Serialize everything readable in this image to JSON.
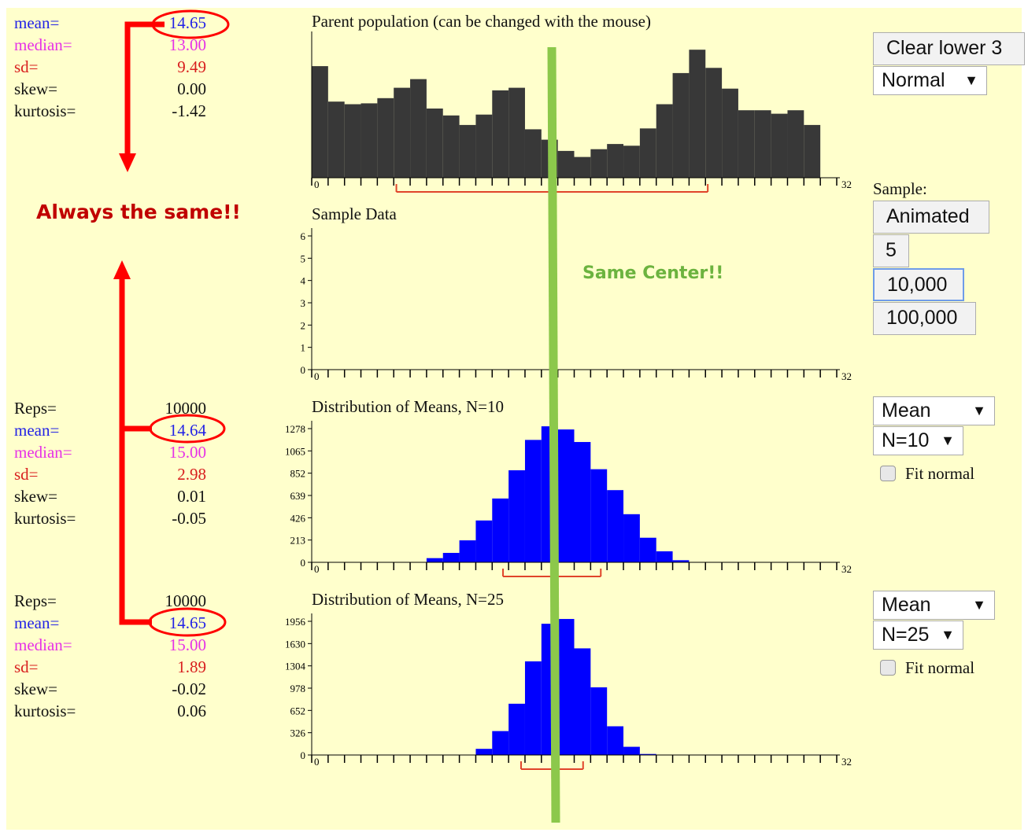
{
  "parent_stats": {
    "mean": {
      "label": "mean=",
      "value": "14.65"
    },
    "median": {
      "label": "median=",
      "value": "13.00"
    },
    "sd": {
      "label": "sd=",
      "value": "9.49"
    },
    "skew": {
      "label": "skew=",
      "value": "0.00"
    },
    "kurtosis": {
      "label": "kurtosis=",
      "value": "-1.42"
    }
  },
  "means10_stats": {
    "reps": {
      "label": "Reps=",
      "value": "10000"
    },
    "mean": {
      "label": "mean=",
      "value": "14.64"
    },
    "median": {
      "label": "median=",
      "value": "15.00"
    },
    "sd": {
      "label": "sd=",
      "value": "2.98"
    },
    "skew": {
      "label": "skew=",
      "value": "0.01"
    },
    "kurtosis": {
      "label": "kurtosis=",
      "value": "-0.05"
    }
  },
  "means25_stats": {
    "reps": {
      "label": "Reps=",
      "value": "10000"
    },
    "mean": {
      "label": "mean=",
      "value": "14.65"
    },
    "median": {
      "label": "median=",
      "value": "15.00"
    },
    "sd": {
      "label": "sd=",
      "value": "1.89"
    },
    "skew": {
      "label": "skew=",
      "value": "-0.02"
    },
    "kurtosis": {
      "label": "kurtosis=",
      "value": "0.06"
    }
  },
  "titles": {
    "parent": "Parent population (can be changed with the mouse)",
    "sample": "Sample Data",
    "means10": "Distribution of Means, N=10",
    "means25": "Distribution of Means, N=25"
  },
  "annotations": {
    "always_same": "Always the same!!",
    "same_center": "Same Center!!"
  },
  "controls": {
    "clear_label": "Clear lower 3",
    "dist_select": "Normal",
    "sample_label": "Sample:",
    "animated_label": "Animated",
    "five_label": "5",
    "tenk_label": "10,000",
    "hundredk_label": "100,000",
    "stat1_select": "Mean",
    "n1_select": "N=10",
    "fit1_label": "Fit normal",
    "stat2_select": "Mean",
    "n2_select": "N=25",
    "fit2_label": "Fit normal",
    "select_arrow": "▼"
  },
  "chart_data": [
    {
      "type": "bar",
      "title": "Parent population (can be changed with the mouse)",
      "x_range": [
        0,
        32
      ],
      "tick_labels": [
        "0",
        "32"
      ],
      "values": [
        129,
        88,
        85,
        86,
        92,
        104,
        114,
        80,
        72,
        61,
        73,
        101,
        104,
        56,
        44,
        31,
        24,
        33,
        39,
        37,
        57,
        85,
        121,
        148,
        127,
        103,
        78,
        78,
        74,
        78,
        61
      ],
      "mean": 14.65,
      "sd": 9.49,
      "colors": {
        "bars": "#383838",
        "sd_bracket": "#e0442a",
        "mean_tick": "#e632e6"
      }
    },
    {
      "type": "bar",
      "title": "Sample Data",
      "x_range": [
        0,
        32
      ],
      "tick_labels": [
        "0",
        "32"
      ],
      "y_ticks": [
        0,
        1,
        2,
        3,
        4,
        5,
        6
      ],
      "values": []
    },
    {
      "type": "bar",
      "title": "Distribution of Means, N=10",
      "x_range": [
        0,
        32
      ],
      "tick_labels": [
        "0",
        "32"
      ],
      "y_ticks": [
        0,
        213,
        426,
        639,
        852,
        1065,
        1278
      ],
      "values": [
        0,
        0,
        0,
        0,
        0,
        0,
        2,
        40,
        90,
        210,
        400,
        610,
        880,
        1170,
        1300,
        1270,
        1150,
        890,
        690,
        460,
        235,
        105,
        20,
        0,
        0,
        0,
        0,
        0,
        0,
        0,
        0,
        0
      ],
      "mean": 14.64,
      "sd": 2.98,
      "colors": {
        "bars": "#0000ff",
        "sd_bracket": "#e0442a",
        "mean_tick": "#e632e6"
      }
    },
    {
      "type": "bar",
      "title": "Distribution of Means, N=25",
      "x_range": [
        0,
        32
      ],
      "tick_labels": [
        "0",
        "32"
      ],
      "y_ticks": [
        0,
        326,
        652,
        978,
        1304,
        1630,
        1956
      ],
      "values": [
        0,
        0,
        0,
        0,
        0,
        0,
        0,
        0,
        0,
        0,
        90,
        350,
        750,
        1370,
        1920,
        1990,
        1560,
        990,
        420,
        120,
        15,
        0,
        0,
        0,
        0,
        0,
        0,
        0,
        0,
        0,
        0,
        0
      ],
      "mean": 14.65,
      "sd": 1.89,
      "colors": {
        "bars": "#0000ff",
        "sd_bracket": "#e0442a",
        "mean_tick": "#e632e6"
      }
    }
  ]
}
